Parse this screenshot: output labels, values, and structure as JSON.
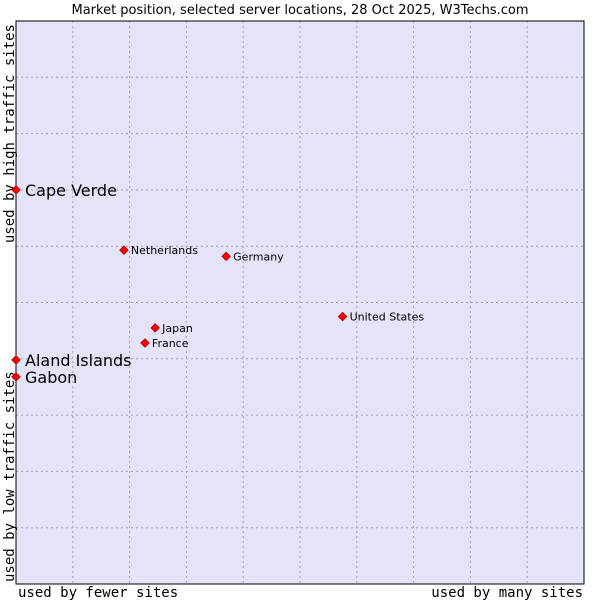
{
  "chart_data": {
    "type": "scatter",
    "title": "Market position, selected server locations, 28 Oct 2025, W3Techs.com",
    "xlabel_left": "used by fewer sites",
    "xlabel_right": "used by many sites",
    "ylabel_bottom": "used by low traffic sites",
    "ylabel_top": "used by high traffic sites",
    "xlim": [
      0,
      10
    ],
    "ylim": [
      0,
      10
    ],
    "grid": true,
    "colors": {
      "plot_background": "#e4e4f8",
      "grid": "#a0a0b8",
      "point": "#ff0000",
      "point_stroke": "#b00000"
    },
    "points": [
      {
        "name": "Cape Verde",
        "x": 0.0,
        "y": 7.0,
        "emphasis": true
      },
      {
        "name": "Netherlands",
        "x": 1.9,
        "y": 5.93,
        "emphasis": false
      },
      {
        "name": "Germany",
        "x": 3.7,
        "y": 5.82,
        "emphasis": false
      },
      {
        "name": "United States",
        "x": 5.75,
        "y": 4.75,
        "emphasis": false
      },
      {
        "name": "Japan",
        "x": 2.45,
        "y": 4.55,
        "emphasis": false
      },
      {
        "name": "France",
        "x": 2.27,
        "y": 4.28,
        "emphasis": false
      },
      {
        "name": "Aland Islands",
        "x": 0.0,
        "y": 3.98,
        "emphasis": true
      },
      {
        "name": "Gabon",
        "x": 0.0,
        "y": 3.68,
        "emphasis": true
      }
    ]
  }
}
